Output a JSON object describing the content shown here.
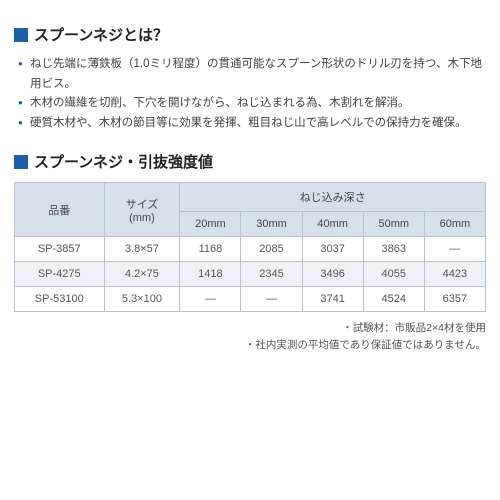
{
  "section1": {
    "title": "スプーンネジとは？",
    "bullets": [
      "ねじ先端に薄鉄板（1.0ミリ程度）の貫通可能なスプーン形状のドリル刃を持つ、木下地用ビス。",
      "木材の繊維を切削、下穴を開けながら、ねじ込まれる為、木割れを解消。",
      "硬質木材や、木材の節目等に効果を発揮、粗目ねじ山で高レベルでの保持力を確保。"
    ]
  },
  "section2": {
    "title": "スプーンネジ・引抜強度値",
    "header": {
      "part_no": "品番",
      "size": "サイズ\n(mm)",
      "depth_group": "ねじ込み深さ",
      "depths": [
        "20mm",
        "30mm",
        "40mm",
        "50mm",
        "60mm"
      ]
    },
    "rows": [
      {
        "pn": "SP-3857",
        "size": "3.8×57",
        "v": [
          "1168",
          "2085",
          "3037",
          "3863",
          "—"
        ]
      },
      {
        "pn": "SP-4275",
        "size": "4.2×75",
        "v": [
          "1418",
          "2345",
          "3496",
          "4055",
          "4423"
        ]
      },
      {
        "pn": "SP-53100",
        "size": "5.3×100",
        "v": [
          "—",
          "—",
          "3741",
          "4524",
          "6357"
        ]
      }
    ],
    "notes": [
      "試験材：市販品2×4材を使用",
      "社内実測の平均値であり保証値ではありません。"
    ]
  }
}
